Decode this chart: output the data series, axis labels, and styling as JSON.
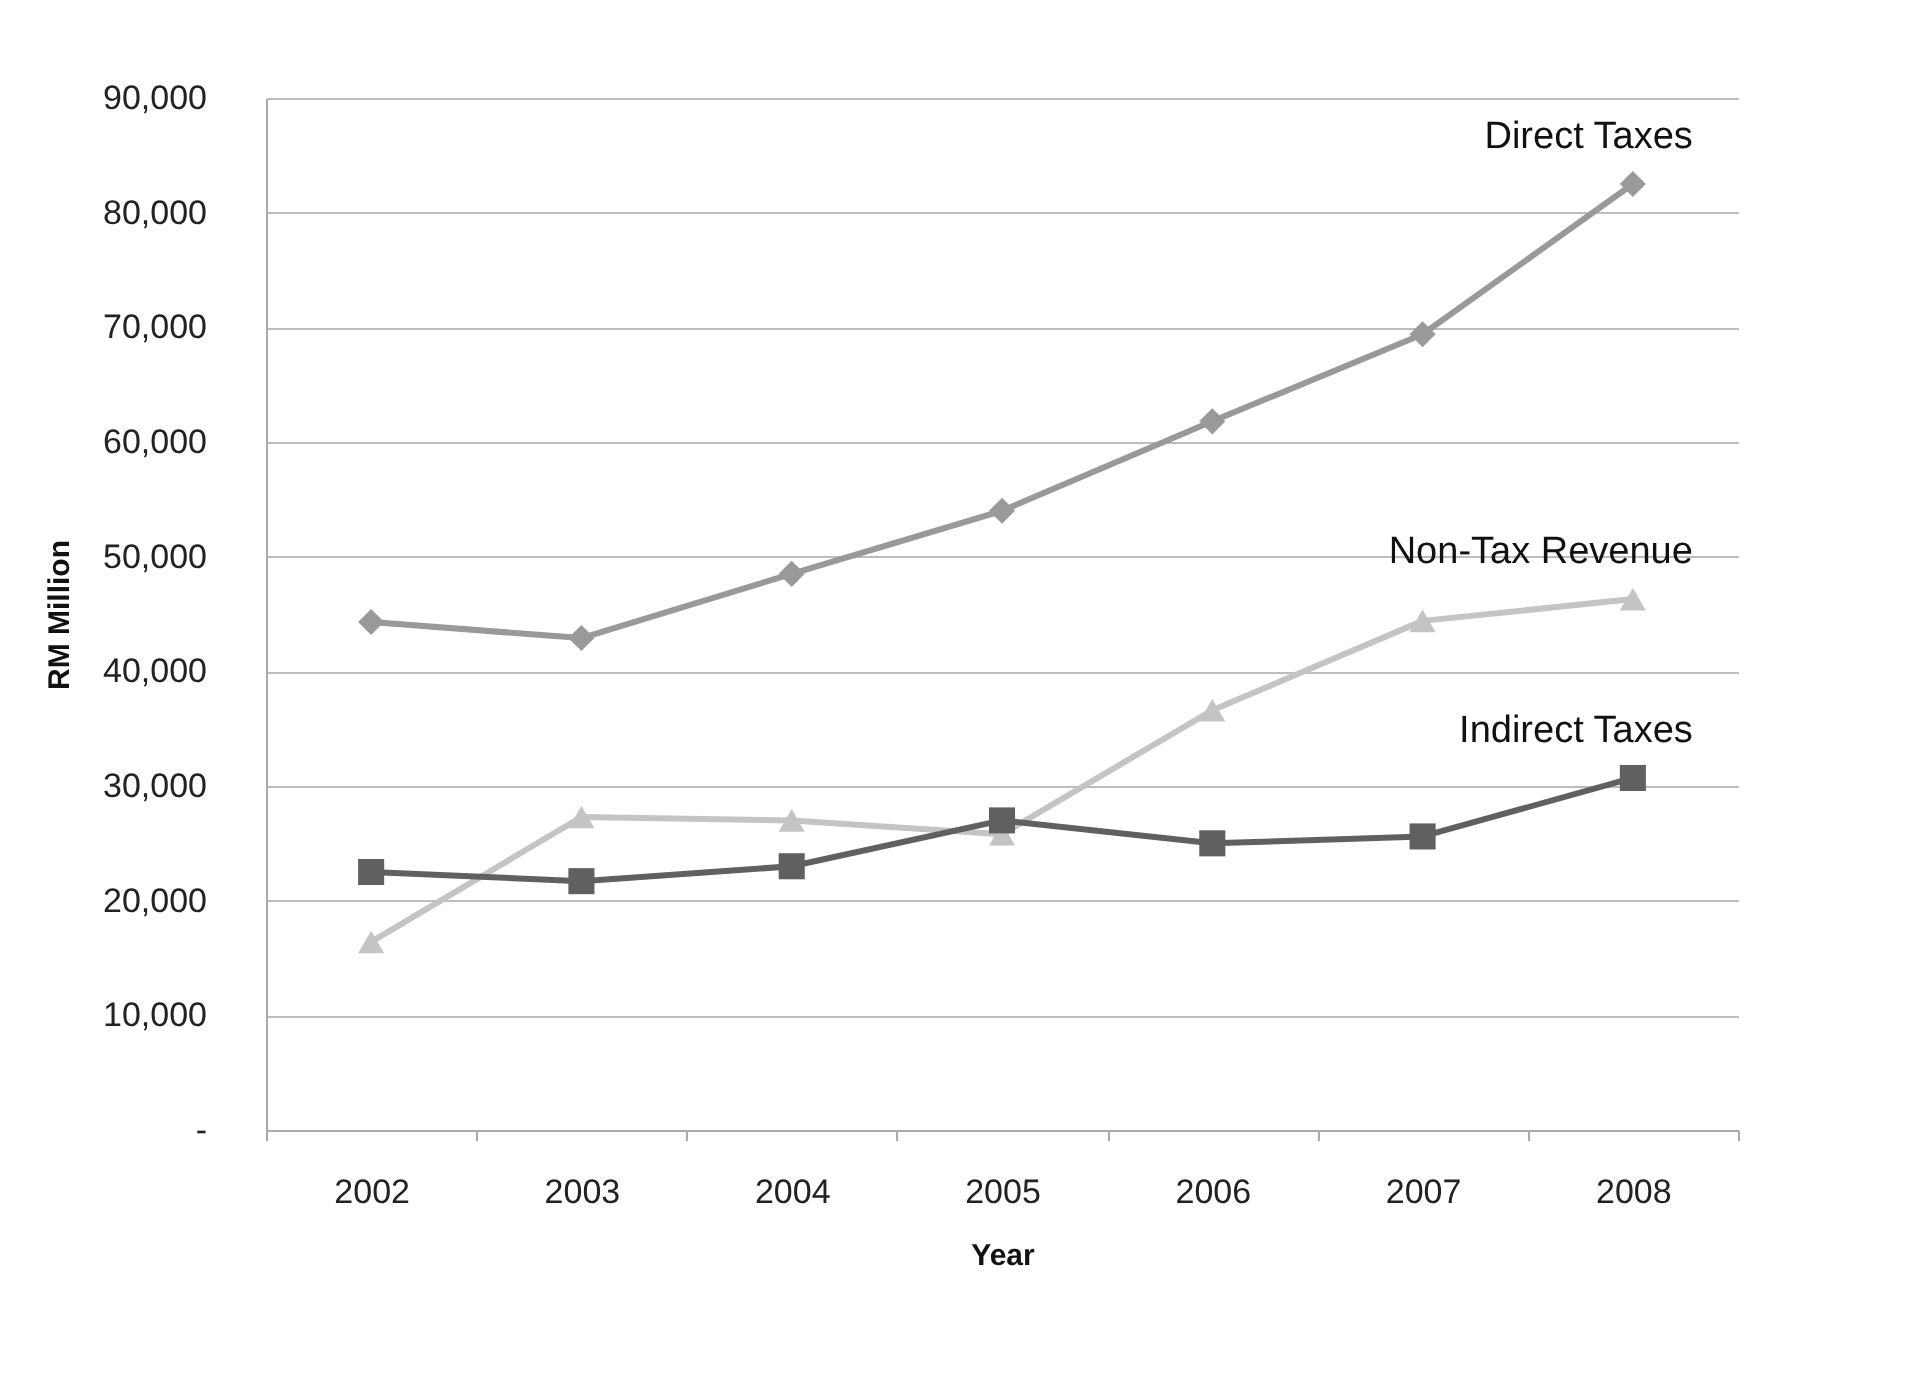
{
  "chart_data": {
    "type": "line",
    "xlabel": "Year",
    "ylabel": "RM Million",
    "categories": [
      "2002",
      "2003",
      "2004",
      "2005",
      "2006",
      "2007",
      "2008"
    ],
    "series": [
      {
        "name": "Direct Taxes",
        "color": "#999999",
        "marker": "diamond",
        "values": [
          44300,
          42900,
          48500,
          54000,
          61800,
          69400,
          82500
        ]
      },
      {
        "name": "Non-Tax Revenue",
        "color": "#c4c4c4",
        "marker": "triangle",
        "values": [
          16400,
          27300,
          27000,
          25800,
          36600,
          44400,
          46300
        ]
      },
      {
        "name": "Indirect Taxes",
        "color": "#606060",
        "marker": "square",
        "values": [
          22500,
          21700,
          23000,
          27000,
          25000,
          25600,
          30700
        ]
      }
    ],
    "ylim": [
      0,
      90000
    ],
    "yticks": [
      {
        "value": 0,
        "label": "-"
      },
      {
        "value": 10000,
        "label": "10,000"
      },
      {
        "value": 20000,
        "label": "20,000"
      },
      {
        "value": 30000,
        "label": "30,000"
      },
      {
        "value": 40000,
        "label": "40,000"
      },
      {
        "value": 50000,
        "label": "50,000"
      },
      {
        "value": 60000,
        "label": "60,000"
      },
      {
        "value": 70000,
        "label": "70,000"
      },
      {
        "value": 80000,
        "label": "80,000"
      },
      {
        "value": 90000,
        "label": "90,000"
      }
    ],
    "grid": "y",
    "legend": false
  }
}
